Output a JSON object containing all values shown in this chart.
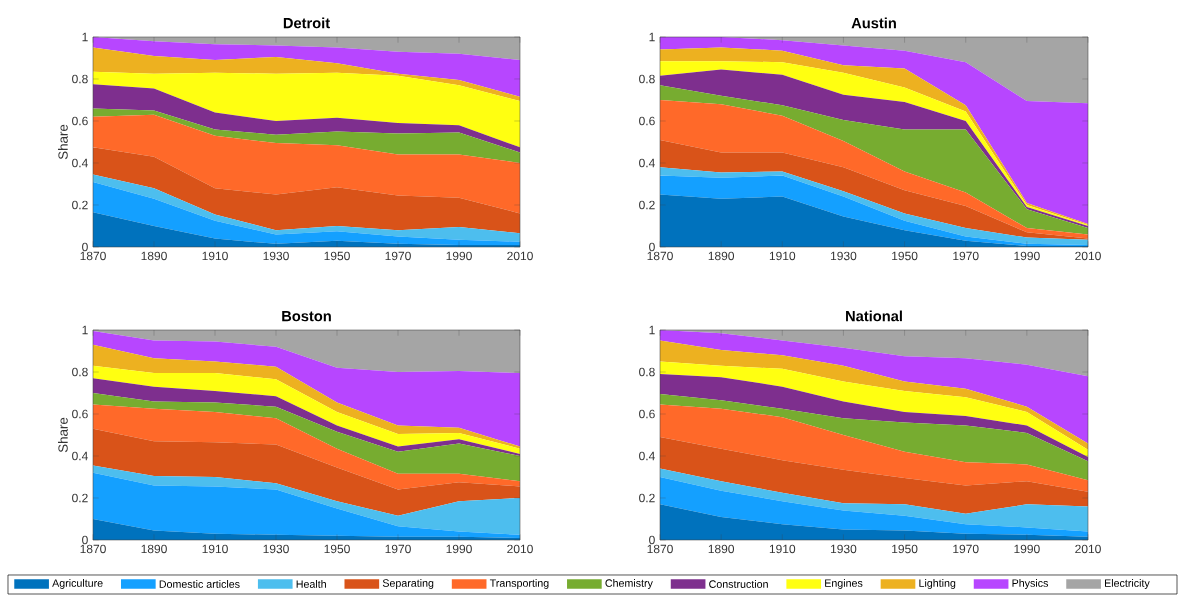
{
  "chart_data": [
    {
      "type": "area",
      "title": "Detroit",
      "ylabel": "Share",
      "stacked": true,
      "x": [
        1870,
        1890,
        1910,
        1930,
        1950,
        1970,
        1990,
        2010
      ],
      "xlim": [
        1870,
        2010
      ],
      "ylim": [
        0,
        1
      ],
      "xticks": [
        1870,
        1890,
        1910,
        1930,
        1950,
        1970,
        1990,
        2010
      ],
      "yticks": [
        0,
        0.2,
        0.4,
        0.6,
        0.8,
        1
      ],
      "series": [
        {
          "color": "#0072bd",
          "values": [
            0.165,
            0.1,
            0.04,
            0.015,
            0.03,
            0.015,
            0.01,
            0.01
          ]
        },
        {
          "color": "#14a0ff",
          "values": [
            0.145,
            0.13,
            0.085,
            0.045,
            0.045,
            0.035,
            0.025,
            0.015
          ]
        },
        {
          "color": "#4dbeee",
          "values": [
            0.035,
            0.05,
            0.03,
            0.02,
            0.025,
            0.03,
            0.06,
            0.04
          ]
        },
        {
          "color": "#d95319",
          "values": [
            0.13,
            0.15,
            0.125,
            0.17,
            0.185,
            0.165,
            0.14,
            0.095
          ]
        },
        {
          "color": "#ff6929",
          "values": [
            0.145,
            0.2,
            0.25,
            0.245,
            0.2,
            0.195,
            0.205,
            0.24
          ]
        },
        {
          "color": "#77ac30",
          "values": [
            0.04,
            0.02,
            0.03,
            0.04,
            0.065,
            0.1,
            0.105,
            0.05
          ]
        },
        {
          "color": "#7e2f8e",
          "values": [
            0.115,
            0.105,
            0.08,
            0.065,
            0.065,
            0.05,
            0.035,
            0.025
          ]
        },
        {
          "color": "#ffff11",
          "values": [
            0.06,
            0.07,
            0.19,
            0.225,
            0.215,
            0.225,
            0.19,
            0.22
          ]
        },
        {
          "color": "#edb120",
          "values": [
            0.115,
            0.085,
            0.06,
            0.08,
            0.045,
            0.01,
            0.025,
            0.02
          ]
        },
        {
          "color": "#b746ff",
          "values": [
            0.05,
            0.07,
            0.075,
            0.055,
            0.075,
            0.105,
            0.125,
            0.175
          ]
        },
        {
          "color": "#a5a5a5",
          "values": [
            0,
            0.02,
            0.035,
            0.04,
            0.05,
            0.07,
            0.08,
            0.11
          ]
        }
      ]
    },
    {
      "type": "area",
      "title": "Austin",
      "stacked": true,
      "x": [
        1870,
        1890,
        1910,
        1930,
        1950,
        1970,
        1990,
        2010
      ],
      "xlim": [
        1870,
        2010
      ],
      "ylim": [
        0,
        1
      ],
      "xticks": [
        1870,
        1890,
        1910,
        1930,
        1950,
        1970,
        1990,
        2010
      ],
      "yticks": [
        0,
        0.2,
        0.4,
        0.6,
        0.8,
        1
      ],
      "series": [
        {
          "color": "#0072bd",
          "values": [
            0.25,
            0.23,
            0.24,
            0.145,
            0.08,
            0.03,
            0.005,
            0.005
          ]
        },
        {
          "color": "#14a0ff",
          "values": [
            0.09,
            0.1,
            0.1,
            0.095,
            0.045,
            0.02,
            0.01,
            0.005
          ]
        },
        {
          "color": "#4dbeee",
          "values": [
            0.04,
            0.025,
            0.02,
            0.025,
            0.035,
            0.04,
            0.03,
            0.025
          ]
        },
        {
          "color": "#d95319",
          "values": [
            0.13,
            0.095,
            0.09,
            0.115,
            0.11,
            0.105,
            0.025,
            0.005
          ]
        },
        {
          "color": "#ff6929",
          "values": [
            0.19,
            0.23,
            0.175,
            0.125,
            0.09,
            0.065,
            0.02,
            0.02
          ]
        },
        {
          "color": "#77ac30",
          "values": [
            0.07,
            0.04,
            0.05,
            0.1,
            0.2,
            0.3,
            0.09,
            0.03
          ]
        },
        {
          "color": "#7e2f8e",
          "values": [
            0.045,
            0.125,
            0.145,
            0.12,
            0.13,
            0.04,
            0.01,
            0.01
          ]
        },
        {
          "color": "#ffff11",
          "values": [
            0.07,
            0.04,
            0.06,
            0.105,
            0.07,
            0.045,
            0.01,
            0.005
          ]
        },
        {
          "color": "#edb120",
          "values": [
            0.055,
            0.065,
            0.055,
            0.035,
            0.09,
            0.03,
            0.01,
            0.005
          ]
        },
        {
          "color": "#b746ff",
          "values": [
            0.06,
            0.05,
            0.05,
            0.095,
            0.085,
            0.205,
            0.485,
            0.575
          ]
        },
        {
          "color": "#a5a5a5",
          "values": [
            0,
            0,
            0.015,
            0.04,
            0.065,
            0.12,
            0.305,
            0.315
          ]
        }
      ]
    },
    {
      "type": "area",
      "title": "Boston",
      "ylabel": "Share",
      "stacked": true,
      "x": [
        1870,
        1890,
        1910,
        1930,
        1950,
        1970,
        1990,
        2010
      ],
      "xlim": [
        1870,
        2010
      ],
      "ylim": [
        0,
        1
      ],
      "xticks": [
        1870,
        1890,
        1910,
        1930,
        1950,
        1970,
        1990,
        2010
      ],
      "yticks": [
        0,
        0.2,
        0.4,
        0.6,
        0.8,
        1
      ],
      "series": [
        {
          "color": "#0072bd",
          "values": [
            0.1,
            0.045,
            0.03,
            0.025,
            0.02,
            0.015,
            0.015,
            0.01
          ]
        },
        {
          "color": "#14a0ff",
          "values": [
            0.22,
            0.215,
            0.225,
            0.215,
            0.13,
            0.05,
            0.025,
            0.015
          ]
        },
        {
          "color": "#4dbeee",
          "values": [
            0.035,
            0.045,
            0.045,
            0.03,
            0.035,
            0.05,
            0.145,
            0.175
          ]
        },
        {
          "color": "#d95319",
          "values": [
            0.175,
            0.165,
            0.165,
            0.185,
            0.16,
            0.125,
            0.09,
            0.055
          ]
        },
        {
          "color": "#ff6929",
          "values": [
            0.115,
            0.155,
            0.145,
            0.125,
            0.09,
            0.075,
            0.04,
            0.025
          ]
        },
        {
          "color": "#77ac30",
          "values": [
            0.055,
            0.035,
            0.045,
            0.055,
            0.08,
            0.105,
            0.145,
            0.12
          ]
        },
        {
          "color": "#7e2f8e",
          "values": [
            0.07,
            0.07,
            0.055,
            0.05,
            0.03,
            0.025,
            0.02,
            0.01
          ]
        },
        {
          "color": "#ffff11",
          "values": [
            0.06,
            0.065,
            0.085,
            0.08,
            0.065,
            0.06,
            0.03,
            0.025
          ]
        },
        {
          "color": "#edb120",
          "values": [
            0.1,
            0.07,
            0.055,
            0.06,
            0.045,
            0.04,
            0.025,
            0.01
          ]
        },
        {
          "color": "#b746ff",
          "values": [
            0.065,
            0.085,
            0.095,
            0.095,
            0.165,
            0.255,
            0.27,
            0.35
          ]
        },
        {
          "color": "#a5a5a5",
          "values": [
            0.005,
            0.05,
            0.055,
            0.08,
            0.18,
            0.2,
            0.195,
            0.205
          ]
        }
      ]
    },
    {
      "type": "area",
      "title": "National",
      "stacked": true,
      "legend": "bottom",
      "x": [
        1870,
        1890,
        1910,
        1930,
        1950,
        1970,
        1990,
        2010
      ],
      "xlim": [
        1870,
        2010
      ],
      "ylim": [
        0,
        1
      ],
      "xticks": [
        1870,
        1890,
        1910,
        1930,
        1950,
        1970,
        1990,
        2010
      ],
      "yticks": [
        0,
        0.2,
        0.4,
        0.6,
        0.8,
        1
      ],
      "series": [
        {
          "name": "Agriculture",
          "color": "#0072bd",
          "values": [
            0.17,
            0.11,
            0.075,
            0.05,
            0.045,
            0.03,
            0.025,
            0.015
          ]
        },
        {
          "name": "Domestic articles",
          "color": "#14a0ff",
          "values": [
            0.13,
            0.125,
            0.11,
            0.09,
            0.07,
            0.045,
            0.035,
            0.025
          ]
        },
        {
          "name": "Health",
          "color": "#4dbeee",
          "values": [
            0.04,
            0.045,
            0.04,
            0.035,
            0.055,
            0.05,
            0.11,
            0.12
          ]
        },
        {
          "name": "Separating",
          "color": "#d95319",
          "values": [
            0.15,
            0.155,
            0.155,
            0.16,
            0.125,
            0.135,
            0.11,
            0.07
          ]
        },
        {
          "name": "Transporting",
          "color": "#ff6929",
          "values": [
            0.155,
            0.19,
            0.205,
            0.165,
            0.125,
            0.11,
            0.08,
            0.055
          ]
        },
        {
          "name": "Chemistry",
          "color": "#77ac30",
          "values": [
            0.05,
            0.04,
            0.04,
            0.08,
            0.14,
            0.175,
            0.15,
            0.09
          ]
        },
        {
          "name": "Construction",
          "color": "#7e2f8e",
          "values": [
            0.095,
            0.11,
            0.105,
            0.08,
            0.05,
            0.045,
            0.035,
            0.02
          ]
        },
        {
          "name": "Engines",
          "color": "#ffff11",
          "values": [
            0.06,
            0.055,
            0.085,
            0.095,
            0.1,
            0.09,
            0.065,
            0.035
          ]
        },
        {
          "name": "Lighting",
          "color": "#edb120",
          "values": [
            0.1,
            0.075,
            0.065,
            0.075,
            0.045,
            0.04,
            0.025,
            0.03
          ]
        },
        {
          "name": "Physics",
          "color": "#b746ff",
          "values": [
            0.05,
            0.08,
            0.07,
            0.085,
            0.12,
            0.145,
            0.2,
            0.32
          ]
        },
        {
          "name": "Electricity",
          "color": "#a5a5a5",
          "values": [
            0,
            0.015,
            0.05,
            0.085,
            0.125,
            0.135,
            0.165,
            0.22
          ]
        }
      ]
    }
  ]
}
